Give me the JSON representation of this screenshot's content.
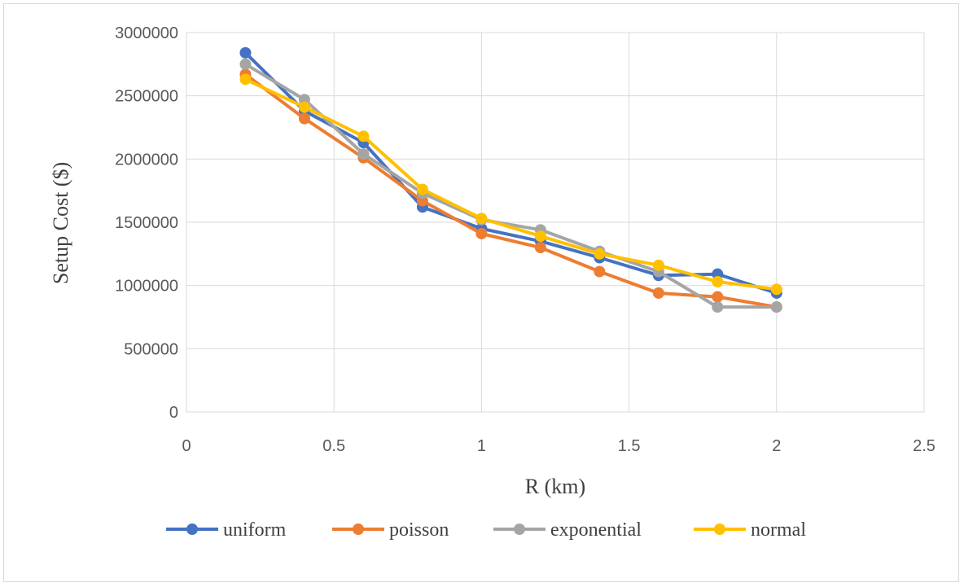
{
  "chart_data": {
    "type": "line",
    "title": "",
    "xlabel": "R (km)",
    "ylabel": "Setup Cost ($)",
    "xlim": [
      0,
      2.5
    ],
    "ylim": [
      0,
      3000000
    ],
    "xticks": [
      0,
      0.5,
      1,
      1.5,
      2,
      2.5
    ],
    "xtick_labels": [
      "0",
      "0.5",
      "1",
      "1.5",
      "2",
      "2.5"
    ],
    "yticks": [
      0,
      500000,
      1000000,
      1500000,
      2000000,
      2500000,
      3000000
    ],
    "ytick_labels": [
      "0",
      "500000",
      "1000000",
      "1500000",
      "2000000",
      "2500000",
      "3000000"
    ],
    "grid": true,
    "legend_position": "bottom",
    "x": [
      0.2,
      0.4,
      0.6,
      0.8,
      1.0,
      1.2,
      1.4,
      1.6,
      1.8,
      2.0
    ],
    "series": [
      {
        "name": "uniform",
        "color": "#4472C4",
        "values": [
          2840000,
          2380000,
          2130000,
          1620000,
          1450000,
          1350000,
          1220000,
          1080000,
          1090000,
          940000
        ]
      },
      {
        "name": "poisson",
        "color": "#ED7D31",
        "values": [
          2670000,
          2320000,
          2010000,
          1670000,
          1410000,
          1300000,
          1110000,
          940000,
          910000,
          830000
        ]
      },
      {
        "name": "exponential",
        "color": "#A5A5A5",
        "values": [
          2750000,
          2470000,
          2040000,
          1730000,
          1520000,
          1440000,
          1270000,
          1110000,
          830000,
          830000
        ]
      },
      {
        "name": "normal",
        "color": "#FFC000",
        "values": [
          2630000,
          2410000,
          2180000,
          1760000,
          1530000,
          1390000,
          1250000,
          1160000,
          1030000,
          970000
        ]
      }
    ]
  }
}
